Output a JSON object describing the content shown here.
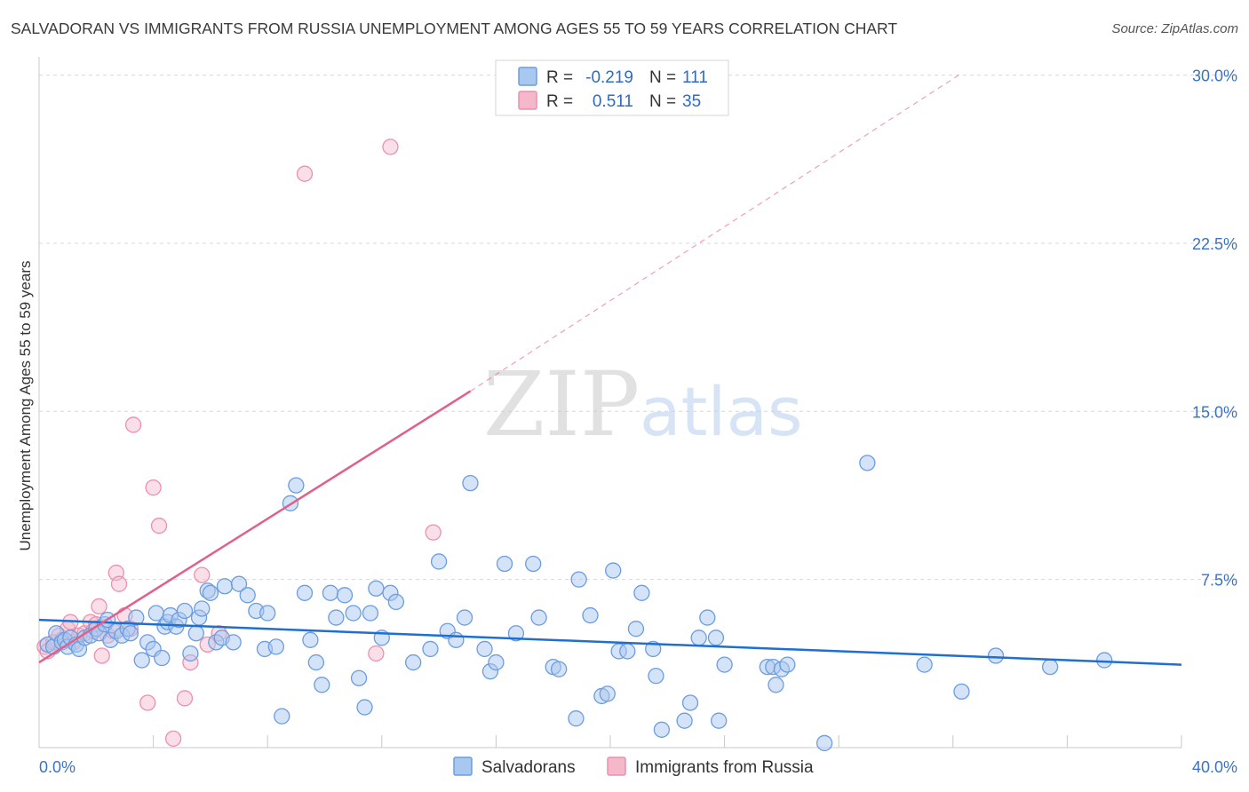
{
  "title": "SALVADORAN VS IMMIGRANTS FROM RUSSIA UNEMPLOYMENT AMONG AGES 55 TO 59 YEARS CORRELATION CHART",
  "source": "Source: ZipAtlas.com",
  "watermark": {
    "zip": "ZIP",
    "atlas": "atlas"
  },
  "colors": {
    "blue_fill": "#a9c8f0",
    "blue_stroke": "#6b9de0",
    "blue_line": "#1f6fd0",
    "pink_fill": "#f5b8cb",
    "pink_stroke": "#ec90ac",
    "pink_line": "#e0608a",
    "grid": "#d8d8d8",
    "tick_text": "#3b72c4"
  },
  "legend": {
    "r_label": "R =",
    "n_label": "N =",
    "series": [
      {
        "r": "-0.219",
        "n": "111"
      },
      {
        "r": "0.511",
        "n": "35"
      }
    ]
  },
  "chart_data": {
    "type": "scatter",
    "title": "SALVADORAN VS IMMIGRANTS FROM RUSSIA UNEMPLOYMENT AMONG AGES 55 TO 59 YEARS CORRELATION CHART",
    "xlabel": "",
    "ylabel": "Unemployment Among Ages 55 to 59 years",
    "xlim": [
      0,
      40
    ],
    "ylim": [
      0,
      30.5
    ],
    "x_tick_labels": [
      "0.0%",
      "40.0%"
    ],
    "y_ticks": [
      7.5,
      15.0,
      22.5,
      30.0
    ],
    "y_tick_labels": [
      "7.5%",
      "15.0%",
      "22.5%",
      "30.0%"
    ],
    "x_minor_ticks": [
      4,
      8,
      12,
      16,
      20,
      24,
      28,
      32,
      36,
      40
    ],
    "series": [
      {
        "name": "Salvadorans",
        "r": -0.219,
        "n": 111,
        "trend": {
          "x": [
            0,
            40
          ],
          "y": [
            5.7,
            3.7
          ]
        },
        "points": [
          [
            0.3,
            4.6
          ],
          [
            0.5,
            4.5
          ],
          [
            0.6,
            5.1
          ],
          [
            0.8,
            4.7
          ],
          [
            0.9,
            4.8
          ],
          [
            1.0,
            4.5
          ],
          [
            1.1,
            4.9
          ],
          [
            1.3,
            4.6
          ],
          [
            1.4,
            4.4
          ],
          [
            1.6,
            4.9
          ],
          [
            1.8,
            5.0
          ],
          [
            2.0,
            5.3
          ],
          [
            2.1,
            5.1
          ],
          [
            2.3,
            5.5
          ],
          [
            2.4,
            5.7
          ],
          [
            2.5,
            4.8
          ],
          [
            2.7,
            5.2
          ],
          [
            2.9,
            5.0
          ],
          [
            3.1,
            5.3
          ],
          [
            3.2,
            5.1
          ],
          [
            3.4,
            5.8
          ],
          [
            3.6,
            3.9
          ],
          [
            3.8,
            4.7
          ],
          [
            4.0,
            4.4
          ],
          [
            4.1,
            6.0
          ],
          [
            4.3,
            4.0
          ],
          [
            4.4,
            5.4
          ],
          [
            4.5,
            5.6
          ],
          [
            4.6,
            5.9
          ],
          [
            4.8,
            5.4
          ],
          [
            4.9,
            5.7
          ],
          [
            5.1,
            6.1
          ],
          [
            5.3,
            4.2
          ],
          [
            5.5,
            5.1
          ],
          [
            5.6,
            5.8
          ],
          [
            5.7,
            6.2
          ],
          [
            5.9,
            7.0
          ],
          [
            6.0,
            6.9
          ],
          [
            6.2,
            4.7
          ],
          [
            6.4,
            4.9
          ],
          [
            6.5,
            7.2
          ],
          [
            6.8,
            4.7
          ],
          [
            7.0,
            7.3
          ],
          [
            7.3,
            6.8
          ],
          [
            7.6,
            6.1
          ],
          [
            7.9,
            4.4
          ],
          [
            8.0,
            6.0
          ],
          [
            8.3,
            4.5
          ],
          [
            8.5,
            1.4
          ],
          [
            8.8,
            10.9
          ],
          [
            9.0,
            11.7
          ],
          [
            9.3,
            6.9
          ],
          [
            9.5,
            4.8
          ],
          [
            9.7,
            3.8
          ],
          [
            9.9,
            2.8
          ],
          [
            10.2,
            6.9
          ],
          [
            10.4,
            5.8
          ],
          [
            10.7,
            6.8
          ],
          [
            11.0,
            6.0
          ],
          [
            11.2,
            3.1
          ],
          [
            11.4,
            1.8
          ],
          [
            11.6,
            6.0
          ],
          [
            11.8,
            7.1
          ],
          [
            12.0,
            4.9
          ],
          [
            12.3,
            6.9
          ],
          [
            12.5,
            6.5
          ],
          [
            13.1,
            3.8
          ],
          [
            13.7,
            4.4
          ],
          [
            14.0,
            8.3
          ],
          [
            14.3,
            5.2
          ],
          [
            14.6,
            4.8
          ],
          [
            14.9,
            5.8
          ],
          [
            15.1,
            11.8
          ],
          [
            15.6,
            4.4
          ],
          [
            15.8,
            3.4
          ],
          [
            16.0,
            3.8
          ],
          [
            16.3,
            8.2
          ],
          [
            16.7,
            5.1
          ],
          [
            17.3,
            8.2
          ],
          [
            17.5,
            5.8
          ],
          [
            18.0,
            3.6
          ],
          [
            18.2,
            3.5
          ],
          [
            18.8,
            1.3
          ],
          [
            18.9,
            7.5
          ],
          [
            19.3,
            5.9
          ],
          [
            19.7,
            2.3
          ],
          [
            19.9,
            2.4
          ],
          [
            20.1,
            7.9
          ],
          [
            20.3,
            4.3
          ],
          [
            20.6,
            4.3
          ],
          [
            20.9,
            5.3
          ],
          [
            21.1,
            6.9
          ],
          [
            21.5,
            4.4
          ],
          [
            21.6,
            3.2
          ],
          [
            21.8,
            0.8
          ],
          [
            22.6,
            1.2
          ],
          [
            22.8,
            2.0
          ],
          [
            23.1,
            4.9
          ],
          [
            23.4,
            5.8
          ],
          [
            23.7,
            4.9
          ],
          [
            23.8,
            1.2
          ],
          [
            24.0,
            3.7
          ],
          [
            25.5,
            3.6
          ],
          [
            25.7,
            3.6
          ],
          [
            25.8,
            2.8
          ],
          [
            26.0,
            3.5
          ],
          [
            26.2,
            3.7
          ],
          [
            27.5,
            0.2
          ],
          [
            29.0,
            12.7
          ],
          [
            31.0,
            3.7
          ],
          [
            32.3,
            2.5
          ],
          [
            33.5,
            4.1
          ],
          [
            35.4,
            3.6
          ],
          [
            37.3,
            3.9
          ]
        ]
      },
      {
        "name": "Immigrants from Russia",
        "r": 0.511,
        "n": 35,
        "trend": {
          "x": [
            0,
            15.1
          ],
          "y": [
            3.8,
            15.9
          ],
          "dashed_to": {
            "x": 32.2,
            "y": 30.0
          }
        },
        "points": [
          [
            0.2,
            4.5
          ],
          [
            0.3,
            4.3
          ],
          [
            0.5,
            4.7
          ],
          [
            0.7,
            5.0
          ],
          [
            0.8,
            4.8
          ],
          [
            1.0,
            5.3
          ],
          [
            1.1,
            5.6
          ],
          [
            1.2,
            4.7
          ],
          [
            1.4,
            5.0
          ],
          [
            1.6,
            5.1
          ],
          [
            1.8,
            5.6
          ],
          [
            1.9,
            5.2
          ],
          [
            2.0,
            5.5
          ],
          [
            2.1,
            6.3
          ],
          [
            2.2,
            4.1
          ],
          [
            2.4,
            5.0
          ],
          [
            2.6,
            5.2
          ],
          [
            2.7,
            7.8
          ],
          [
            2.8,
            7.3
          ],
          [
            3.0,
            5.9
          ],
          [
            3.2,
            5.3
          ],
          [
            3.3,
            14.4
          ],
          [
            3.8,
            2.0
          ],
          [
            4.0,
            11.6
          ],
          [
            4.2,
            9.9
          ],
          [
            4.7,
            0.4
          ],
          [
            5.1,
            2.2
          ],
          [
            5.3,
            3.8
          ],
          [
            5.7,
            7.7
          ],
          [
            5.9,
            4.6
          ],
          [
            6.3,
            5.1
          ],
          [
            9.3,
            25.6
          ],
          [
            11.8,
            4.2
          ],
          [
            12.3,
            26.8
          ],
          [
            13.8,
            9.6
          ]
        ]
      }
    ],
    "legend": [
      "Salvadorans",
      "Immigrants from Russia"
    ]
  }
}
